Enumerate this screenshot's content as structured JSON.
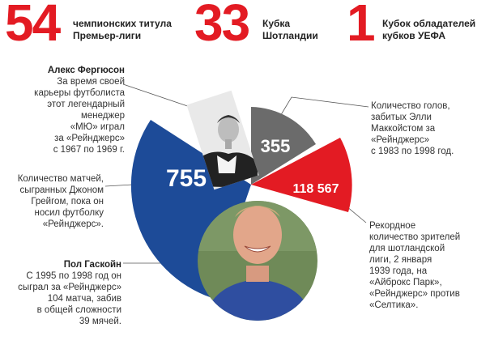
{
  "colors": {
    "red": "#e31b23",
    "blue": "#1d4b98",
    "gray": "#6b6b6b",
    "line": "#555555"
  },
  "header_stats": [
    {
      "number": "54",
      "line1": "чемпионских титула",
      "line2": "Премьер-лиги"
    },
    {
      "number": "33",
      "line1": "Кубка",
      "line2": "Шотландии"
    },
    {
      "number": "1",
      "line1": "Кубок обладателей",
      "line2": "кубков УЕФА"
    }
  ],
  "chart_data": {
    "type": "pie",
    "slices": [
      {
        "label": "755",
        "color": "#1d4b98"
      },
      {
        "label": "355",
        "color": "#6b6b6b"
      },
      {
        "label": "118 567",
        "color": "#e31b23"
      }
    ],
    "photos": [
      "Алекс Фергюсон",
      "Пол Гаскойн"
    ]
  },
  "annotations": {
    "ferguson": {
      "name": "Алекс Фергюсон",
      "lines": [
        "За время своей",
        "карьеры футболиста",
        "этот легендарный",
        "менеджер",
        "«МЮ» играл",
        "за «Рейнджерс»",
        "с 1967 по 1969 г."
      ]
    },
    "greig": {
      "lines": [
        "Количество матчей,",
        "сыгранных Джоном",
        "Грейгом, пока он",
        "носил футболку",
        "«Рейнджерс»."
      ]
    },
    "gascoigne": {
      "name": "Пол Гаскойн",
      "lines": [
        "С 1995 по 1998 год он",
        "сыграл за «Рейнджерс»",
        "104 матча, забив",
        "в общей сложности",
        "39 мячей."
      ]
    },
    "mccoist": {
      "lines": [
        "Количество голов,",
        "забитых Элли",
        "Маккойстом за",
        "«Рейнджерс»",
        "с 1983 по 1998 год."
      ]
    },
    "attendance": {
      "lines": [
        "Рекордное",
        "количество зрителей",
        "для шотландской",
        "лиги, 2 января",
        "1939 года, на",
        "«Айброкс Парк»,",
        "«Рейнджерс» против",
        "«Селтика»."
      ]
    }
  }
}
